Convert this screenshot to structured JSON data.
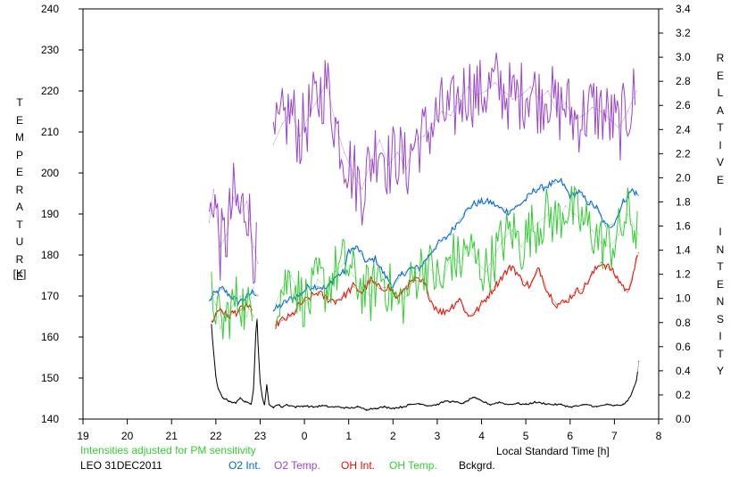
{
  "chart_data": {
    "type": "line",
    "x_ticks": [
      "19",
      "20",
      "21",
      "22",
      "23",
      "0",
      "1",
      "2",
      "3",
      "4",
      "5",
      "6",
      "7",
      "8"
    ],
    "xlabel": "Local Standard Time [h]",
    "xlim": [
      19,
      32
    ],
    "ylabel_left": "TEMPERATURE",
    "ylabel_left_unit": "[K]",
    "ylim_left": [
      140,
      240
    ],
    "y_ticks_left": [
      "140",
      "150",
      "160",
      "170",
      "180",
      "190",
      "200",
      "210",
      "220",
      "230",
      "240"
    ],
    "ylabel_right": "RELATIVE  INTENSITY",
    "ylim_right": [
      0.0,
      3.4
    ],
    "y_ticks_right": [
      "0.0",
      "0.2",
      "0.4",
      "0.6",
      "0.8",
      "1.0",
      "1.2",
      "1.4",
      "1.6",
      "1.8",
      "2.0",
      "2.2",
      "2.4",
      "2.6",
      "2.8",
      "3.0",
      "3.2",
      "3.4"
    ],
    "grid": false,
    "note": "Intensities adjusted for PM sensitivity",
    "station": "LEO 31DEC2011",
    "series": [
      {
        "name": "O2 Int.",
        "axis": "right",
        "color": "#0066cc",
        "x": [
          21.85,
          21.95,
          22.05,
          22.15,
          22.3,
          22.5,
          22.7,
          22.85,
          22.95,
          23.3,
          23.5,
          23.7,
          23.9,
          24.1,
          24.3,
          24.5,
          24.7,
          24.9,
          25.0,
          25.2,
          25.4,
          25.6,
          25.8,
          26.0,
          26.2,
          26.4,
          26.6,
          26.8,
          27.0,
          27.2,
          27.4,
          27.6,
          27.8,
          28.0,
          28.2,
          28.4,
          28.6,
          28.8,
          29.0,
          29.2,
          29.4,
          29.6,
          29.8,
          30.0,
          30.2,
          30.4,
          30.6,
          30.8,
          31.0,
          31.2,
          31.4,
          31.55
        ],
        "values": [
          0.98,
          1.03,
          1.06,
          1.08,
          1.03,
          0.97,
          1.01,
          1.06,
          1.02,
          0.9,
          0.95,
          1.0,
          1.03,
          1.1,
          1.1,
          1.08,
          1.18,
          1.22,
          1.4,
          1.42,
          1.3,
          1.33,
          1.2,
          1.1,
          1.2,
          1.25,
          1.25,
          1.35,
          1.45,
          1.5,
          1.6,
          1.7,
          1.78,
          1.8,
          1.8,
          1.75,
          1.72,
          1.76,
          1.82,
          1.9,
          1.92,
          1.95,
          1.97,
          1.85,
          1.88,
          1.8,
          1.75,
          1.6,
          1.62,
          1.8,
          1.9,
          1.85
        ]
      },
      {
        "name": "O2 Temp.",
        "axis": "left",
        "color": "#9944cc",
        "x": [
          21.85,
          21.95,
          22.1,
          22.25,
          22.4,
          22.55,
          22.7,
          22.85,
          22.95,
          23.3,
          23.5,
          23.7,
          23.9,
          24.1,
          24.3,
          24.5,
          24.7,
          24.9,
          25.1,
          25.3,
          25.5,
          25.7,
          25.9,
          26.1,
          26.3,
          26.5,
          26.7,
          26.9,
          27.1,
          27.3,
          27.5,
          27.7,
          27.9,
          28.1,
          28.3,
          28.5,
          28.7,
          28.9,
          29.1,
          29.3,
          29.5,
          29.7,
          29.9,
          30.1,
          30.3,
          30.5,
          30.7,
          30.9,
          31.1,
          31.3,
          31.5
        ],
        "values": [
          188,
          196,
          182,
          185,
          194,
          190,
          193,
          182,
          178,
          207,
          212,
          215,
          209,
          214,
          218,
          222,
          212,
          205,
          200,
          196,
          203,
          208,
          202,
          205,
          201,
          208,
          209,
          212,
          215,
          214,
          218,
          221,
          219,
          220,
          222,
          220,
          218,
          219,
          221,
          218,
          220,
          215,
          217,
          213,
          214,
          216,
          215,
          213,
          211,
          215,
          220
        ]
      },
      {
        "name": "OH Int.",
        "axis": "right",
        "color": "#dd1100",
        "x": [
          21.9,
          22.0,
          22.1,
          22.25,
          22.4,
          22.55,
          22.7,
          22.85,
          23.35,
          23.5,
          23.7,
          23.9,
          24.1,
          24.3,
          24.5,
          24.7,
          24.9,
          25.1,
          25.3,
          25.5,
          25.7,
          25.9,
          26.1,
          26.3,
          26.5,
          26.7,
          26.9,
          27.1,
          27.3,
          27.5,
          27.7,
          27.9,
          28.1,
          28.3,
          28.5,
          28.7,
          28.9,
          29.1,
          29.3,
          29.5,
          29.7,
          29.9,
          30.1,
          30.3,
          30.5,
          30.7,
          30.9,
          31.1,
          31.3,
          31.55
        ],
        "values": [
          0.8,
          0.87,
          0.92,
          0.85,
          0.88,
          0.9,
          0.95,
          0.85,
          0.78,
          0.82,
          0.85,
          0.95,
          1.0,
          1.05,
          1.0,
          0.98,
          1.02,
          1.1,
          1.05,
          1.15,
          1.08,
          1.1,
          1.0,
          1.1,
          1.15,
          1.13,
          0.95,
          0.88,
          0.92,
          1.0,
          0.85,
          0.9,
          1.0,
          1.1,
          1.2,
          1.27,
          1.15,
          1.1,
          1.25,
          1.05,
          0.95,
          0.97,
          1.05,
          1.08,
          1.2,
          1.3,
          1.25,
          1.15,
          1.05,
          1.38
        ]
      },
      {
        "name": "OH Temp.",
        "axis": "left",
        "color": "#33cc33",
        "x": [
          21.9,
          22.0,
          22.1,
          22.25,
          22.4,
          22.55,
          22.7,
          22.85,
          23.35,
          23.5,
          23.7,
          23.9,
          24.1,
          24.3,
          24.5,
          24.7,
          24.9,
          25.1,
          25.3,
          25.5,
          25.7,
          25.9,
          26.1,
          26.3,
          26.5,
          26.7,
          26.9,
          27.1,
          27.3,
          27.5,
          27.7,
          27.9,
          28.1,
          28.3,
          28.5,
          28.7,
          28.9,
          29.1,
          29.3,
          29.5,
          29.7,
          29.9,
          30.1,
          30.3,
          30.5,
          30.7,
          30.9,
          31.1,
          31.3,
          31.55
        ],
        "values": [
          170,
          168,
          162,
          165,
          168,
          170,
          165,
          172,
          168,
          172,
          175,
          170,
          168,
          174,
          172,
          176,
          178,
          175,
          172,
          170,
          176,
          172,
          168,
          170,
          175,
          178,
          176,
          172,
          180,
          178,
          182,
          178,
          176,
          180,
          184,
          186,
          182,
          186,
          188,
          190,
          188,
          192,
          190,
          188,
          186,
          183,
          182,
          185,
          190,
          185
        ]
      },
      {
        "name": "Bckgrd.",
        "axis": "right",
        "color": "#000000",
        "x": [
          21.9,
          21.95,
          22.0,
          22.05,
          22.15,
          22.3,
          22.45,
          22.55,
          22.65,
          22.8,
          22.85,
          22.9,
          22.93,
          22.95,
          23.0,
          23.05,
          23.1,
          23.15,
          23.2,
          23.3,
          23.4,
          23.5,
          23.6,
          23.8,
          24.0,
          24.2,
          24.4,
          24.6,
          24.8,
          25.0,
          25.2,
          25.4,
          25.6,
          25.8,
          26.0,
          26.2,
          26.4,
          26.6,
          26.8,
          27.0,
          27.2,
          27.4,
          27.6,
          27.8,
          28.0,
          28.2,
          28.4,
          28.6,
          28.8,
          29.0,
          29.2,
          29.4,
          29.6,
          29.8,
          30.0,
          30.2,
          30.4,
          30.6,
          30.8,
          31.0,
          31.2,
          31.3,
          31.4,
          31.5,
          31.55
        ],
        "values": [
          0.78,
          0.55,
          0.35,
          0.25,
          0.18,
          0.15,
          0.13,
          0.18,
          0.14,
          0.13,
          0.25,
          0.7,
          0.83,
          0.65,
          0.3,
          0.18,
          0.12,
          0.28,
          0.12,
          0.1,
          0.12,
          0.1,
          0.12,
          0.1,
          0.11,
          0.1,
          0.11,
          0.1,
          0.1,
          0.09,
          0.1,
          0.08,
          0.09,
          0.1,
          0.09,
          0.1,
          0.12,
          0.13,
          0.11,
          0.12,
          0.15,
          0.14,
          0.13,
          0.18,
          0.15,
          0.12,
          0.14,
          0.12,
          0.13,
          0.12,
          0.14,
          0.13,
          0.12,
          0.12,
          0.1,
          0.11,
          0.12,
          0.1,
          0.12,
          0.11,
          0.12,
          0.15,
          0.22,
          0.32,
          0.48
        ]
      }
    ]
  }
}
